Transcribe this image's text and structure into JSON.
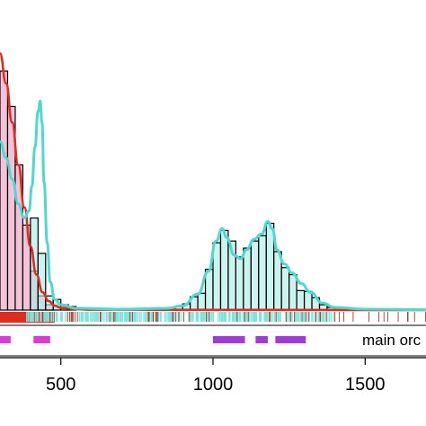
{
  "chart_data": {
    "type": "bar",
    "title": "",
    "xlabel": "",
    "ylabel": "",
    "xlim": [
      300,
      1700
    ],
    "x_ticks": [
      500,
      1000,
      1500
    ],
    "x_tick_labels": [
      "500",
      "1000",
      "1500"
    ],
    "grid": false,
    "bin_width": 25,
    "series": [
      {
        "color": "#f2b8d0",
        "bins": [
          {
            "x0": 300,
            "x1": 325,
            "count": 13.5
          },
          {
            "x0": 325,
            "x1": 350,
            "count": 11.5
          },
          {
            "x0": 350,
            "x1": 375,
            "count": 8.2
          },
          {
            "x0": 375,
            "x1": 400,
            "count": 4.8
          },
          {
            "x0": 400,
            "x1": 425,
            "count": 2.2
          },
          {
            "x0": 425,
            "x1": 450,
            "count": 0.8
          },
          {
            "x0": 450,
            "x1": 475,
            "count": 0.3
          }
        ],
        "density_color": "#e02b1f",
        "density": [
          [
            300,
            14.5
          ],
          [
            320,
            12.8
          ],
          [
            340,
            10.6
          ],
          [
            360,
            8.2
          ],
          [
            380,
            5.8
          ],
          [
            400,
            3.6
          ],
          [
            420,
            2.0
          ],
          [
            440,
            1.0
          ],
          [
            460,
            0.5
          ],
          [
            480,
            0.25
          ],
          [
            500,
            0.12
          ],
          [
            550,
            0.05
          ],
          [
            600,
            0.02
          ],
          [
            1700,
            0.0
          ]
        ]
      },
      {
        "color": "#a8ece6",
        "bins": [
          {
            "x0": 400,
            "x1": 425,
            "count": 5.2
          },
          {
            "x0": 425,
            "x1": 450,
            "count": 3.2
          },
          {
            "x0": 450,
            "x1": 475,
            "count": 0.8
          },
          {
            "x0": 475,
            "x1": 500,
            "count": 0.6
          },
          {
            "x0": 500,
            "x1": 525,
            "count": 0.3
          },
          {
            "x0": 525,
            "x1": 550,
            "count": 0.2
          },
          {
            "x0": 875,
            "x1": 900,
            "count": 0.2
          },
          {
            "x0": 900,
            "x1": 925,
            "count": 0.35
          },
          {
            "x0": 925,
            "x1": 950,
            "count": 0.75
          },
          {
            "x0": 950,
            "x1": 975,
            "count": 0.95
          },
          {
            "x0": 975,
            "x1": 1000,
            "count": 2.3
          },
          {
            "x0": 1000,
            "x1": 1025,
            "count": 3.8
          },
          {
            "x0": 1025,
            "x1": 1050,
            "count": 4.5
          },
          {
            "x0": 1050,
            "x1": 1075,
            "count": 3.9
          },
          {
            "x0": 1075,
            "x1": 1100,
            "count": 3.0
          },
          {
            "x0": 1100,
            "x1": 1125,
            "count": 3.5
          },
          {
            "x0": 1125,
            "x1": 1150,
            "count": 3.9
          },
          {
            "x0": 1150,
            "x1": 1175,
            "count": 4.2
          },
          {
            "x0": 1175,
            "x1": 1200,
            "count": 4.9
          },
          {
            "x0": 1200,
            "x1": 1225,
            "count": 3.3
          },
          {
            "x0": 1225,
            "x1": 1250,
            "count": 2.4
          },
          {
            "x0": 1250,
            "x1": 1275,
            "count": 2.0
          },
          {
            "x0": 1275,
            "x1": 1300,
            "count": 1.1
          },
          {
            "x0": 1300,
            "x1": 1325,
            "count": 1.05
          },
          {
            "x0": 1325,
            "x1": 1350,
            "count": 0.7
          },
          {
            "x0": 1350,
            "x1": 1375,
            "count": 0.3
          },
          {
            "x0": 1375,
            "x1": 1400,
            "count": 0.15
          }
        ],
        "density_color": "#4fd8d0",
        "density": [
          [
            300,
            9.5
          ],
          [
            320,
            8.6
          ],
          [
            340,
            7.4
          ],
          [
            360,
            6.0
          ],
          [
            380,
            5.2
          ],
          [
            395,
            5.6
          ],
          [
            405,
            7.0
          ],
          [
            415,
            9.2
          ],
          [
            425,
            11.2
          ],
          [
            432,
            11.8
          ],
          [
            438,
            10.6
          ],
          [
            445,
            7.2
          ],
          [
            455,
            3.8
          ],
          [
            465,
            1.6
          ],
          [
            480,
            0.6
          ],
          [
            500,
            0.3
          ],
          [
            550,
            0.1
          ],
          [
            700,
            0.05
          ],
          [
            850,
            0.1
          ],
          [
            900,
            0.25
          ],
          [
            950,
            0.9
          ],
          [
            985,
            2.2
          ],
          [
            1010,
            3.9
          ],
          [
            1030,
            4.6
          ],
          [
            1045,
            4.1
          ],
          [
            1070,
            3.1
          ],
          [
            1090,
            2.9
          ],
          [
            1110,
            3.4
          ],
          [
            1135,
            4.0
          ],
          [
            1160,
            4.3
          ],
          [
            1180,
            5.0
          ],
          [
            1195,
            4.6
          ],
          [
            1210,
            3.4
          ],
          [
            1235,
            2.6
          ],
          [
            1260,
            2.1
          ],
          [
            1290,
            1.5
          ],
          [
            1320,
            1.0
          ],
          [
            1360,
            0.4
          ],
          [
            1400,
            0.15
          ],
          [
            1500,
            0.05
          ],
          [
            1700,
            0.02
          ]
        ]
      }
    ],
    "legend": [
      {
        "label": "main orc",
        "color": "#a13bd6"
      }
    ],
    "ranges": [
      {
        "start": 300,
        "end": 335,
        "color": "#d93bd9"
      },
      {
        "start": 410,
        "end": 465,
        "color": "#d93bd9"
      },
      {
        "start": 1000,
        "end": 1105,
        "color": "#a13bd6"
      },
      {
        "start": 1140,
        "end": 1180,
        "color": "#a13bd6"
      },
      {
        "start": 1205,
        "end": 1305,
        "color": "#a13bd6"
      }
    ],
    "rug": {
      "red_dense": [
        300,
        480
      ],
      "cyan_segments": [
        [
          380,
          540
        ],
        [
          560,
          900
        ],
        [
          920,
          1400
        ]
      ],
      "red_sparse": [
        520,
        1700
      ]
    }
  }
}
